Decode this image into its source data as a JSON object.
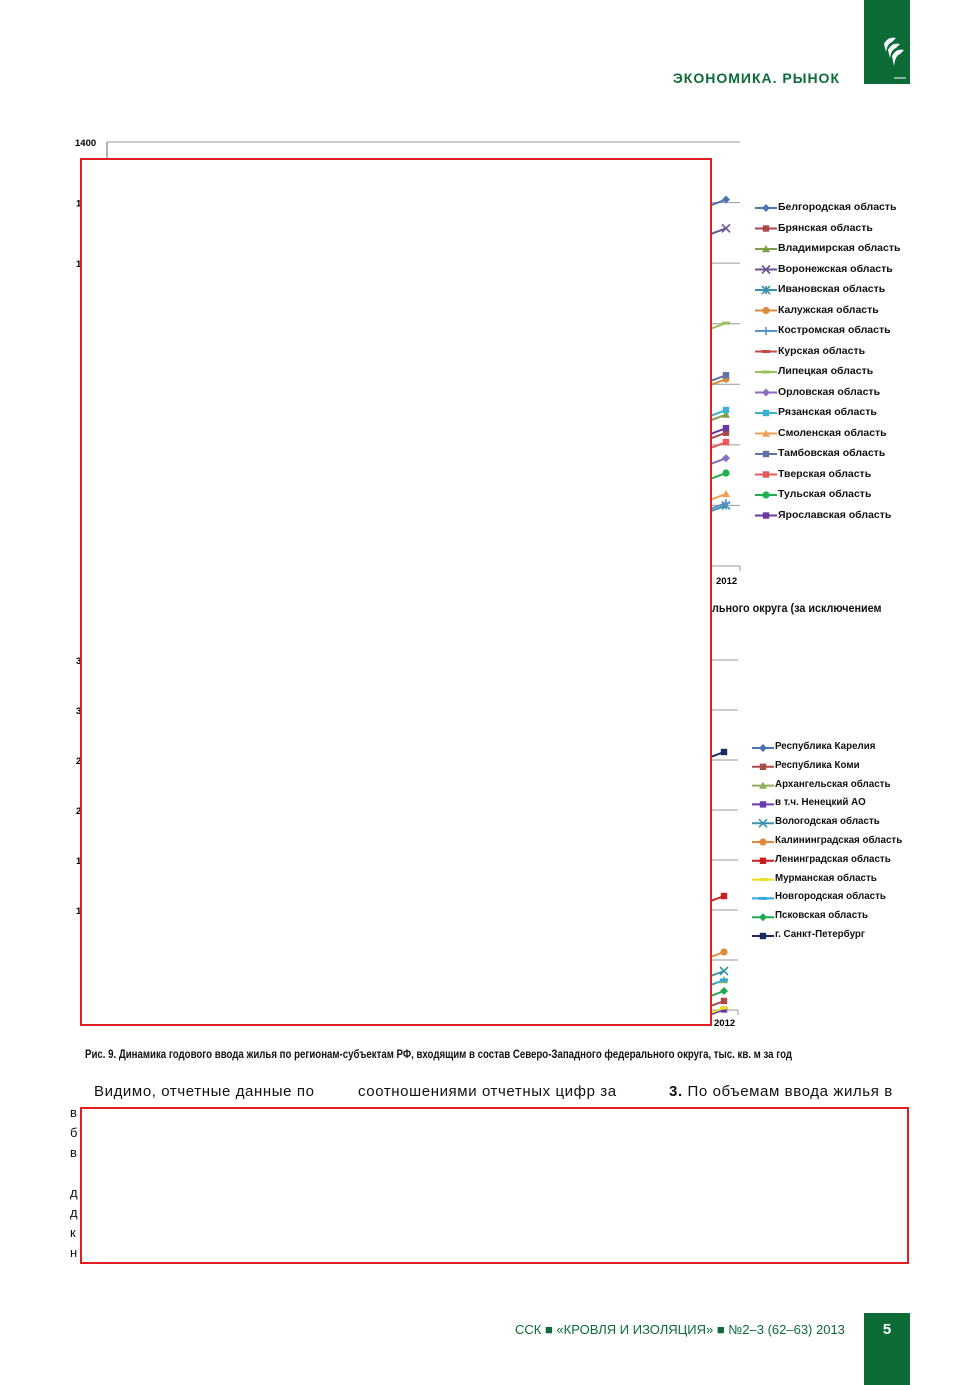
{
  "header": {
    "section_title": "ЭКОНОМИКА. РЫНОК",
    "logo_icon": "ssk-logo-icon"
  },
  "chart_data": [
    {
      "type": "line",
      "title": "",
      "ylim": [
        0,
        1400
      ],
      "yticks_visible": [
        "1400",
        "1",
        "1"
      ],
      "x_visible": [
        "2012"
      ],
      "series": [
        {
          "name": "Белгородская область",
          "color": "#4a74b0",
          "marker": "diamond",
          "last_value": 1210
        },
        {
          "name": "Брянская область",
          "color": "#a84a4a",
          "marker": "square",
          "last_value": 440
        },
        {
          "name": "Владимирская область",
          "color": "#7f9f48",
          "marker": "triangle",
          "last_value": 500
        },
        {
          "name": "Воронежская область",
          "color": "#6a5590",
          "marker": "x",
          "last_value": 1115
        },
        {
          "name": "Ивановская область",
          "color": "#3b93ab",
          "marker": "star",
          "last_value": 200
        },
        {
          "name": "Калужская область",
          "color": "#d88a3c",
          "marker": "circle",
          "last_value": 617
        },
        {
          "name": "Костромская область",
          "color": "#5a8fd0",
          "marker": "plus",
          "last_value": 208
        },
        {
          "name": "Курская область",
          "color": "#c84848",
          "marker": "dash",
          "last_value": null
        },
        {
          "name": "Липецкая область",
          "color": "#98c060",
          "marker": "dash",
          "last_value": 802
        },
        {
          "name": "Орловская область",
          "color": "#8a6bc0",
          "marker": "diamond",
          "last_value": 356
        },
        {
          "name": "Рязанская область",
          "color": "#3cb0cc",
          "marker": "square",
          "last_value": 515
        },
        {
          "name": "Смоленская область",
          "color": "#f0a050",
          "marker": "triangle",
          "last_value": 238
        },
        {
          "name": "Тамбовская область",
          "color": "#6070a8",
          "marker": "square",
          "last_value": 630
        },
        {
          "name": "Тверская область",
          "color": "#e85858",
          "marker": "square",
          "last_value": 409
        },
        {
          "name": "Тульская область",
          "color": "#20b050",
          "marker": "circle",
          "last_value": 307
        },
        {
          "name": "Ярославская область",
          "color": "#6a3aa0",
          "marker": "square",
          "last_value": 455
        }
      ]
    },
    {
      "type": "line",
      "title_fragment": "льного округа (за исключением",
      "ylim": [
        0,
        3500
      ],
      "yticks_visible": [
        "3",
        "3",
        "2",
        "2",
        "1",
        "1"
      ],
      "x_visible": [
        "2012"
      ],
      "series": [
        {
          "name": "Республика Карелия",
          "color": "#4a74b0",
          "marker": "diamond",
          "last_value": null
        },
        {
          "name": "Республика Коми",
          "color": "#a84a4a",
          "marker": "square",
          "last_value": 90
        },
        {
          "name": "Архангельская область",
          "color": "#8fae5a",
          "marker": "triangle",
          "last_value": 300
        },
        {
          "name": "в т.ч. Ненецкий АО",
          "color": "#6a3ab0",
          "marker": "square",
          "last_value": 5
        },
        {
          "name": "Вологодская область",
          "color": "#3b93ab",
          "marker": "x",
          "last_value": 390
        },
        {
          "name": "Калининградская область",
          "color": "#e08a3c",
          "marker": "circle",
          "last_value": 580
        },
        {
          "name": "Ленинградская область",
          "color": "#c82020",
          "marker": "square",
          "last_value": 1140
        },
        {
          "name": "Мурманская область",
          "color": "#e8e020",
          "marker": "dash",
          "last_value": 20
        },
        {
          "name": "Новгородская область",
          "color": "#30a8e0",
          "marker": "dash",
          "last_value": 300
        },
        {
          "name": "Псковская область",
          "color": "#20a850",
          "marker": "diamond",
          "last_value": 190
        },
        {
          "name": "г. Санкт-Петербург",
          "color": "#1a2a60",
          "marker": "square",
          "last_value": 2580
        }
      ]
    }
  ],
  "figure": {
    "caption": "Рис. 9. Динамика годового ввода жилья по регионам-субъектам РФ, входящим в состав Северо-Западного федерального округа, тыс. кв. м за год"
  },
  "text": {
    "col1_first": "Видимо, отчетные данные по",
    "col2_first": "соотношениями отчетных цифр за",
    "col3_num": "3.",
    "col3_first": "По объемам ввода жилья в",
    "left_fragments": [
      "в",
      "б",
      "в",
      "д",
      "д",
      "к",
      "н"
    ]
  },
  "footer": {
    "publication": "ССК ■ «КРОВЛЯ И ИЗОЛЯЦИЯ» ■ №2–3 (62–63) 2013",
    "page_number": "5"
  }
}
